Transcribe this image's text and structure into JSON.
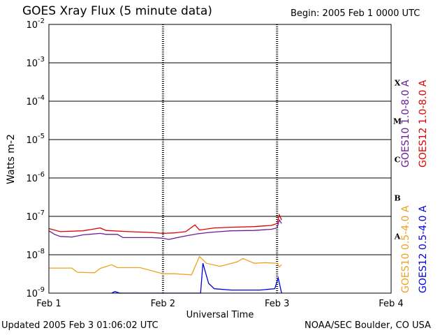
{
  "header": {
    "title": "GOES Xray Flux (5 minute data)",
    "begin_label": "Begin:",
    "begin_value": "2005 Feb 1 0000 UTC"
  },
  "footer": {
    "updated": "Updated 2005 Feb  3 01:06:02 UTC",
    "credit": "NOAA/SEC Boulder, CO USA"
  },
  "chart_data": {
    "type": "line",
    "title": "GOES Xray Flux (5 minute data)",
    "xlabel": "Universal Time",
    "ylabel": "Watts m-2",
    "y_scale": "log",
    "ylim": [
      1e-09,
      0.01
    ],
    "xlim": [
      0,
      3
    ],
    "x_unit": "days since 2005 Feb 1 0000 UTC",
    "x_ticks": [
      {
        "value": 0,
        "label": "Feb 1"
      },
      {
        "value": 1,
        "label": "Feb 2"
      },
      {
        "value": 2,
        "label": "Feb 3"
      },
      {
        "value": 3,
        "label": "Feb 4"
      }
    ],
    "y_ticks": [
      {
        "exp": -9,
        "label": "10",
        "sup": "-9"
      },
      {
        "exp": -8,
        "label": "10",
        "sup": "-8"
      },
      {
        "exp": -7,
        "label": "10",
        "sup": "-7"
      },
      {
        "exp": -6,
        "label": "10",
        "sup": "-6"
      },
      {
        "exp": -5,
        "label": "10",
        "sup": "-5"
      },
      {
        "exp": -4,
        "label": "10",
        "sup": "-4"
      },
      {
        "exp": -3,
        "label": "10",
        "sup": "-3"
      },
      {
        "exp": -2,
        "label": "10",
        "sup": "-2"
      }
    ],
    "flare_classes": [
      {
        "label": "A",
        "exp": -7.5
      },
      {
        "label": "B",
        "exp": -6.5
      },
      {
        "label": "C",
        "exp": -5.5
      },
      {
        "label": "M",
        "exp": -4.5
      },
      {
        "label": "X",
        "exp": -3.5
      }
    ],
    "grid": true,
    "legend_placement": "right, rotated",
    "series": [
      {
        "name": "GOES10 1.0-8.0 A",
        "color": "#6a1b9a",
        "points": [
          [
            0,
            4.2e-08
          ],
          [
            0.05,
            3.4e-08
          ],
          [
            0.1,
            3e-08
          ],
          [
            0.2,
            2.9e-08
          ],
          [
            0.3,
            3.3e-08
          ],
          [
            0.45,
            3.6e-08
          ],
          [
            0.5,
            3.4e-08
          ],
          [
            0.6,
            3.4e-08
          ],
          [
            0.65,
            2.8e-08
          ],
          [
            0.9,
            2.8e-08
          ],
          [
            1.0,
            2.7e-08
          ],
          [
            1.05,
            2.5e-08
          ],
          [
            1.15,
            2.9e-08
          ],
          [
            1.2,
            3.1e-08
          ],
          [
            1.3,
            3.5e-08
          ],
          [
            1.4,
            3.8e-08
          ],
          [
            1.5,
            4e-08
          ],
          [
            1.6,
            4.2e-08
          ],
          [
            1.8,
            4.3e-08
          ],
          [
            1.95,
            4.6e-08
          ],
          [
            2.0,
            5e-08
          ],
          [
            2.02,
            8e-08
          ],
          [
            2.04,
            6.5e-08
          ]
        ]
      },
      {
        "name": "GOES12 1.0-8.0 A",
        "color": "#e00000",
        "points": [
          [
            0,
            4.8e-08
          ],
          [
            0.1,
            4e-08
          ],
          [
            0.3,
            4.2e-08
          ],
          [
            0.45,
            5e-08
          ],
          [
            0.5,
            4.3e-08
          ],
          [
            0.7,
            4e-08
          ],
          [
            0.9,
            3.8e-08
          ],
          [
            1.0,
            3.6e-08
          ],
          [
            1.1,
            3.7e-08
          ],
          [
            1.2,
            4e-08
          ],
          [
            1.28,
            6e-08
          ],
          [
            1.32,
            4.4e-08
          ],
          [
            1.45,
            5e-08
          ],
          [
            1.6,
            5.2e-08
          ],
          [
            1.8,
            5.4e-08
          ],
          [
            1.95,
            5.8e-08
          ],
          [
            2.0,
            6.5e-08
          ],
          [
            2.02,
            1.1e-07
          ],
          [
            2.04,
            8e-08
          ]
        ]
      },
      {
        "name": "GOES10 0.5-4.0 A",
        "color": "#f0a020",
        "points": [
          [
            0,
            4.5e-09
          ],
          [
            0.2,
            4.5e-09
          ],
          [
            0.25,
            3.5e-09
          ],
          [
            0.4,
            3.4e-09
          ],
          [
            0.45,
            4.4e-09
          ],
          [
            0.55,
            5.5e-09
          ],
          [
            0.6,
            4.6e-09
          ],
          [
            0.8,
            4.6e-09
          ],
          [
            1.0,
            3.2e-09
          ],
          [
            1.1,
            3.2e-09
          ],
          [
            1.25,
            3e-09
          ],
          [
            1.32,
            9e-09
          ],
          [
            1.38,
            6e-09
          ],
          [
            1.5,
            5e-09
          ],
          [
            1.65,
            6.5e-09
          ],
          [
            1.7,
            8e-09
          ],
          [
            1.8,
            6e-09
          ],
          [
            1.9,
            6.2e-09
          ],
          [
            2.0,
            6e-09
          ],
          [
            2.02,
            4.8e-09
          ],
          [
            2.04,
            5.5e-09
          ]
        ]
      },
      {
        "name": "GOES12 0.5-4.0 A",
        "color": "#0000e0",
        "points": [
          [
            0.55,
            1e-09
          ],
          [
            0.58,
            1.1e-09
          ],
          [
            0.62,
            1e-09
          ],
          [
            1.33,
            1e-09
          ],
          [
            1.35,
            6e-09
          ],
          [
            1.4,
            1.8e-09
          ],
          [
            1.45,
            1.3e-09
          ],
          [
            1.6,
            1.2e-09
          ],
          [
            1.7,
            1.2e-09
          ],
          [
            1.85,
            1.2e-09
          ],
          [
            1.98,
            1.3e-09
          ],
          [
            2.01,
            2.5e-09
          ],
          [
            2.04,
            1e-09
          ]
        ]
      }
    ]
  }
}
